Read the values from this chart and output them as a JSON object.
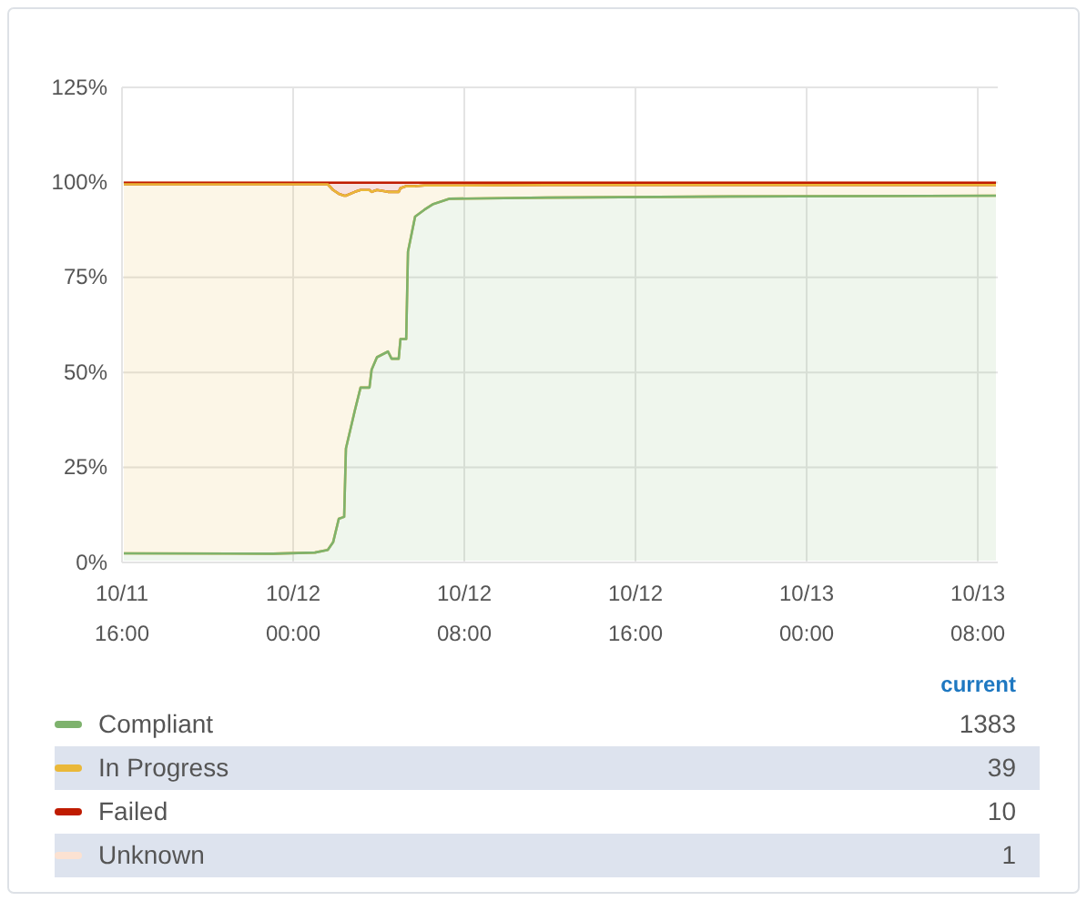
{
  "chart_data": {
    "type": "area",
    "stacked": true,
    "x": [
      "--10-11T16:00",
      "--10-11T23:04",
      "--10-12T01:01",
      "--10-12T01:37",
      "--10-12T01:52",
      "--10-12T02:08",
      "--10-12T02:23",
      "--10-12T02:28",
      "--10-12T02:53",
      "--10-12T03:09",
      "--10-12T03:34",
      "--10-12T03:40",
      "--10-12T03:55",
      "--10-12T04:26",
      "--10-12T04:36",
      "--10-12T04:56",
      "--10-12T05:01",
      "--10-12T05:17",
      "--10-12T05:22",
      "--10-12T05:42",
      "--10-12T06:08",
      "--10-12T06:33",
      "--10-12T07:19",
      "--10-12T11:50",
      "--10-12T20:20",
      "--10-13T08:56"
    ],
    "series": [
      {
        "name": "Compliant",
        "color": "#7eb26d",
        "values": [
          2.4,
          2.3,
          2.6,
          3.3,
          5.3,
          11.5,
          12,
          30,
          40,
          46,
          46,
          50.7,
          54,
          55.5,
          53.6,
          53.6,
          58.8,
          58.8,
          81.8,
          91,
          92.8,
          94.3,
          95.7,
          96,
          96.3,
          96.5
        ]
      },
      {
        "name": "In Progress",
        "color": "#eab839",
        "values": [
          97.1,
          97.2,
          96.9,
          96.2,
          92.7,
          85.5,
          84.5,
          66.5,
          57.5,
          52,
          52,
          46.8,
          44,
          42,
          43.9,
          43.9,
          39.7,
          40.2,
          17.2,
          8,
          6.4,
          4.9,
          3.5,
          3.3,
          3,
          2.8
        ]
      },
      {
        "name": "Failed",
        "color": "#bf1b00",
        "values": [
          0.4,
          0.4,
          0.4,
          0.4,
          1.9,
          2.9,
          3.4,
          3.4,
          2.4,
          1.9,
          1.9,
          2.4,
          1.9,
          2.4,
          2.4,
          2.4,
          1.4,
          0.9,
          0.9,
          0.9,
          0.7,
          0.7,
          0.7,
          0.6,
          0.6,
          0.6
        ]
      },
      {
        "name": "Unknown",
        "color": "#fce2d2",
        "values": [
          0.1,
          0.1,
          0.1,
          0.1,
          0.1,
          0.1,
          0.1,
          0.1,
          0.1,
          0.1,
          0.1,
          0.1,
          0.1,
          0.1,
          0.1,
          0.1,
          0.1,
          0.1,
          0.1,
          0.1,
          0.1,
          0.1,
          0.1,
          0.1,
          0.1,
          0.1
        ]
      }
    ],
    "xlim": [
      "--10-11T16:00",
      "--10-13T08:56"
    ],
    "xticks": [
      {
        "value": "--10-11T16:00",
        "label": "10/11\n16:00"
      },
      {
        "value": "--10-12T00:00",
        "label": "10/12\n00:00"
      },
      {
        "value": "--10-12T08:00",
        "label": "10/12\n08:00"
      },
      {
        "value": "--10-12T16:00",
        "label": "10/12\n16:00"
      },
      {
        "value": "--10-13T00:00",
        "label": "10/13\n00:00"
      },
      {
        "value": "--10-13T08:00",
        "label": "10/13\n08:00"
      }
    ],
    "ylim": [
      0,
      125
    ],
    "yticks": [
      {
        "value": 0,
        "label": "0%"
      },
      {
        "value": 25,
        "label": "25%"
      },
      {
        "value": 50,
        "label": "50%"
      },
      {
        "value": 75,
        "label": "75%"
      },
      {
        "value": 100,
        "label": "100%"
      },
      {
        "value": 125,
        "label": "125%"
      }
    ],
    "grid": true,
    "legend": "bottom",
    "annotations": [
      "current",
      "1383",
      "39",
      "10",
      "1"
    ]
  }
}
